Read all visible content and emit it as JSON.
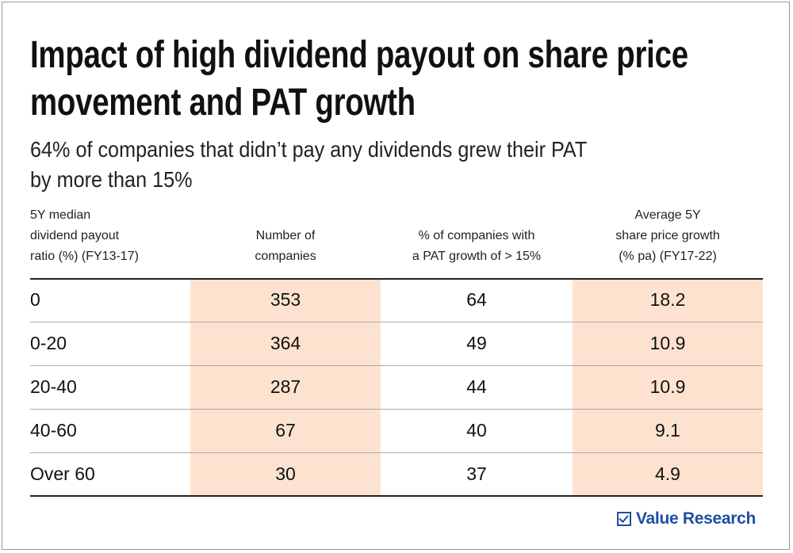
{
  "title": "Impact of high dividend payout on share price movement and PAT growth",
  "title_lines": [
    "Impact of high dividend payout on share price",
    "movement and PAT growth"
  ],
  "subtitle_lines": [
    "64% of companies that didn’t pay any dividends grew their PAT",
    "by more than 15%"
  ],
  "headers": [
    [
      "5Y median",
      "dividend payout",
      "ratio (%) (FY13-17)"
    ],
    [
      "Number of",
      "companies"
    ],
    [
      "% of companies with",
      "a PAT growth of > 15%"
    ],
    [
      "Average 5Y",
      "share price growth",
      "(% pa) (FY17-22)"
    ]
  ],
  "rows": [
    [
      "0",
      "353",
      "64",
      "18.2"
    ],
    [
      "0-20",
      "364",
      "49",
      "10.9"
    ],
    [
      "20-40",
      "287",
      "44",
      "10.9"
    ],
    [
      "40-60",
      "67",
      "40",
      "9.1"
    ],
    [
      "Over 60",
      "30",
      "37",
      "4.9"
    ]
  ],
  "logo": "Value Research",
  "colors": {
    "highlight": "#fde3cf",
    "brand": "#1f4ea1"
  }
}
